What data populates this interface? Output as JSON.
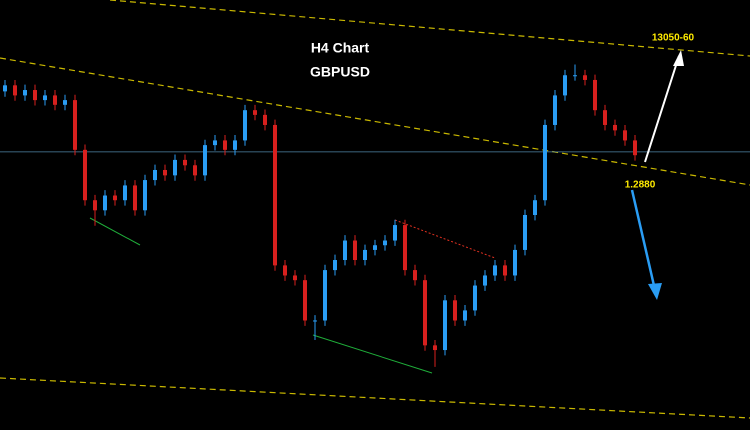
{
  "chart_data": {
    "type": "candlestick",
    "title": "H4 Chart",
    "subtitle": "GBPUSD",
    "ylim": [
      1.2466,
      1.3106
    ],
    "up_color": "#2a9df4",
    "down_color": "#d8201e",
    "series": [
      {
        "open": [
          1.297,
          1.2979,
          1.2964,
          1.2972,
          1.2957,
          1.2964,
          1.295,
          1.2957,
          1.2883,
          1.2808,
          1.2793,
          1.2815,
          1.2808,
          1.283,
          1.2793,
          1.2838,
          1.2853,
          1.2845,
          1.2868,
          1.286,
          1.2845,
          1.289,
          1.2897,
          1.2883,
          1.2897,
          1.2942,
          1.2935,
          1.292,
          1.2711,
          1.2696,
          1.2689,
          1.2629,
          1.2629,
          1.2704,
          1.2719,
          1.2748,
          1.2719,
          1.2734,
          1.2741,
          1.2748,
          1.2771,
          1.2704,
          1.2689,
          1.2592,
          1.2585,
          1.2659,
          1.2629,
          1.2644,
          1.2681,
          1.2696,
          1.2711,
          1.2696,
          1.2734,
          1.2786,
          1.2808,
          1.292,
          1.2964,
          1.2994,
          1.2994,
          1.2987,
          1.2942,
          1.292,
          1.2912,
          1.2897
        ],
        "high": [
          1.2987,
          1.2987,
          1.298,
          1.298,
          1.2972,
          1.2972,
          1.2965,
          1.2965,
          1.2891,
          1.2816,
          1.2823,
          1.2823,
          1.2838,
          1.2838,
          1.2846,
          1.2861,
          1.2861,
          1.2876,
          1.2876,
          1.2868,
          1.2898,
          1.2905,
          1.2905,
          1.2905,
          1.295,
          1.295,
          1.2943,
          1.2928,
          1.2719,
          1.2704,
          1.2697,
          1.2637,
          1.2712,
          1.2727,
          1.2756,
          1.2756,
          1.2742,
          1.2749,
          1.2756,
          1.2779,
          1.2779,
          1.2712,
          1.2697,
          1.26,
          1.2667,
          1.2667,
          1.2652,
          1.2689,
          1.2704,
          1.2719,
          1.2719,
          1.2742,
          1.2794,
          1.2816,
          1.2928,
          1.2972,
          1.3002,
          1.301,
          1.3002,
          1.2995,
          1.295,
          1.2928,
          1.292,
          1.2905
        ],
        "low": [
          1.2962,
          1.2956,
          1.2956,
          1.2949,
          1.2949,
          1.2942,
          1.2942,
          1.2875,
          1.28,
          1.277,
          1.2785,
          1.28,
          1.28,
          1.2785,
          1.2785,
          1.283,
          1.2837,
          1.2837,
          1.2852,
          1.2837,
          1.2837,
          1.2882,
          1.2875,
          1.2875,
          1.2889,
          1.2927,
          1.2912,
          1.2703,
          1.2688,
          1.2681,
          1.2621,
          1.26,
          1.2621,
          1.2696,
          1.2711,
          1.2711,
          1.2711,
          1.2726,
          1.2733,
          1.274,
          1.2696,
          1.2681,
          1.2584,
          1.256,
          1.2577,
          1.2621,
          1.2621,
          1.2636,
          1.2673,
          1.2688,
          1.2688,
          1.2688,
          1.2726,
          1.2778,
          1.28,
          1.2912,
          1.2956,
          1.2986,
          1.2979,
          1.2934,
          1.2912,
          1.2904,
          1.2889,
          1.2867
        ],
        "close": [
          1.2979,
          1.2964,
          1.2972,
          1.2957,
          1.2964,
          1.295,
          1.2957,
          1.2883,
          1.2808,
          1.2793,
          1.2815,
          1.2808,
          1.283,
          1.2793,
          1.2838,
          1.2853,
          1.2845,
          1.2868,
          1.286,
          1.2845,
          1.289,
          1.2897,
          1.2883,
          1.2897,
          1.2942,
          1.2935,
          1.292,
          1.2711,
          1.2696,
          1.2689,
          1.2629,
          1.2629,
          1.2704,
          1.2719,
          1.2748,
          1.2719,
          1.2734,
          1.2741,
          1.2748,
          1.2771,
          1.2704,
          1.2689,
          1.2592,
          1.2585,
          1.2659,
          1.2629,
          1.2644,
          1.2681,
          1.2696,
          1.2711,
          1.2696,
          1.2734,
          1.2786,
          1.2808,
          1.292,
          1.2964,
          1.2994,
          1.2994,
          1.2987,
          1.2942,
          1.292,
          1.2912,
          1.2897,
          1.2875
        ]
      }
    ],
    "levels": [
      {
        "value": 1.288,
        "label": "1.2880"
      }
    ],
    "annotations": [
      "13050-60"
    ]
  }
}
